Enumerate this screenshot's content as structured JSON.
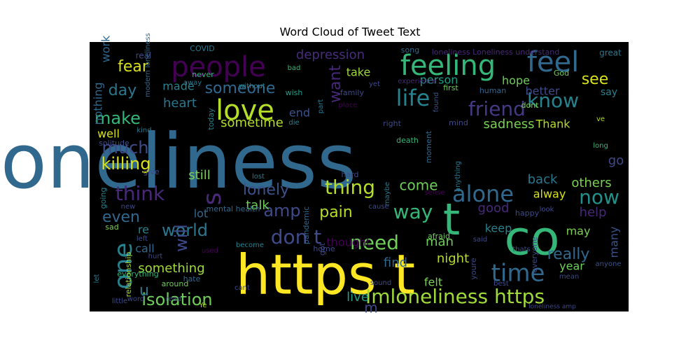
{
  "chart_data": {
    "type": "wordcloud",
    "title": "Word Cloud of Tweet Text",
    "background": "#000000",
    "colormap": "viridis",
    "words": [
      {
        "text": "loneliness",
        "size": 108,
        "color": "#31688e"
      },
      {
        "text": "https t",
        "size": 78,
        "color": "#fde725"
      },
      {
        "text": "co",
        "size": 68,
        "color": "#35b779"
      },
      {
        "text": "t",
        "size": 62,
        "color": "#35b779"
      },
      {
        "text": "feel",
        "size": 40,
        "color": "#31688e"
      },
      {
        "text": "people",
        "size": 40,
        "color": "#440154"
      },
      {
        "text": "feeling",
        "size": 40,
        "color": "#35b779"
      },
      {
        "text": "love",
        "size": 40,
        "color": "#b5de2b"
      },
      {
        "text": "life",
        "size": 32,
        "color": "#26828e"
      },
      {
        "text": "know",
        "size": 28,
        "color": "#26828e"
      },
      {
        "text": "friend",
        "size": 28,
        "color": "#443983"
      },
      {
        "text": "time",
        "size": 34,
        "color": "#31688e"
      },
      {
        "text": "alone",
        "size": 32,
        "color": "#31688e"
      },
      {
        "text": "one",
        "size": 36,
        "color": "#26828e"
      },
      {
        "text": "Imloneliness https",
        "size": 28,
        "color": "#a0da39"
      },
      {
        "text": "don t",
        "size": 28,
        "color": "#3e4a89"
      },
      {
        "text": "need",
        "size": 28,
        "color": "#6ece58"
      },
      {
        "text": "way",
        "size": 28,
        "color": "#35b779"
      },
      {
        "text": "now",
        "size": 28,
        "color": "#21918c"
      },
      {
        "text": "think",
        "size": 28,
        "color": "#482878"
      },
      {
        "text": "thing",
        "size": 28,
        "color": "#b5de2b"
      },
      {
        "text": "s",
        "size": 36,
        "color": "#482878"
      },
      {
        "text": "make",
        "size": 24,
        "color": "#35b779"
      },
      {
        "text": "killing",
        "size": 24,
        "color": "#d8e219"
      },
      {
        "text": "much",
        "size": 24,
        "color": "#3e4a89"
      },
      {
        "text": "world",
        "size": 24,
        "color": "#2a788e"
      },
      {
        "text": "amp",
        "size": 24,
        "color": "#3e4a89"
      },
      {
        "text": "will",
        "size": 24,
        "color": "#3e4a89"
      },
      {
        "text": "pain",
        "size": 22,
        "color": "#b5de2b"
      },
      {
        "text": "isolation",
        "size": 24,
        "color": "#6ece58"
      },
      {
        "text": "even",
        "size": 22,
        "color": "#31688e"
      },
      {
        "text": "want",
        "size": 22,
        "color": "#482878"
      },
      {
        "text": "see",
        "size": 22,
        "color": "#d8e219"
      },
      {
        "text": "fear",
        "size": 22,
        "color": "#d8e219"
      },
      {
        "text": "day",
        "size": 22,
        "color": "#2a788e"
      },
      {
        "text": "someone",
        "size": 22,
        "color": "#31688e"
      },
      {
        "text": "lonely",
        "size": 22,
        "color": "#3b528b"
      },
      {
        "text": "really",
        "size": 22,
        "color": "#31688e"
      },
      {
        "text": "u",
        "size": 22,
        "color": "#2a788e"
      },
      {
        "text": "depression",
        "size": 18,
        "color": "#472d7b"
      },
      {
        "text": "heart",
        "size": 18,
        "color": "#2a788e"
      },
      {
        "text": "made",
        "size": 16,
        "color": "#26828e"
      },
      {
        "text": "sometime",
        "size": 18,
        "color": "#b5de2b"
      },
      {
        "text": "end",
        "size": 16,
        "color": "#3b528b"
      },
      {
        "text": "take",
        "size": 16,
        "color": "#a0da39"
      },
      {
        "text": "person",
        "size": 16,
        "color": "#1f9e89"
      },
      {
        "text": "hope",
        "size": 16,
        "color": "#6ece58"
      },
      {
        "text": "better",
        "size": 16,
        "color": "#3e4a89"
      },
      {
        "text": "say",
        "size": 14,
        "color": "#26828e"
      },
      {
        "text": "sadness",
        "size": 18,
        "color": "#7ad151"
      },
      {
        "text": "Thank",
        "size": 16,
        "color": "#b5de2b"
      },
      {
        "text": "nothing",
        "size": 16,
        "color": "#31688e"
      },
      {
        "text": "well",
        "size": 16,
        "color": "#d8e219"
      },
      {
        "text": "come",
        "size": 20,
        "color": "#6ece58"
      },
      {
        "text": "back",
        "size": 18,
        "color": "#2a788e"
      },
      {
        "text": "go",
        "size": 18,
        "color": "#3e4a89"
      },
      {
        "text": "others",
        "size": 18,
        "color": "#7ad151"
      },
      {
        "text": "alway",
        "size": 16,
        "color": "#d8e219"
      },
      {
        "text": "still",
        "size": 18,
        "color": "#7ad151"
      },
      {
        "text": "lot",
        "size": 16,
        "color": "#31688e"
      },
      {
        "text": "talk",
        "size": 18,
        "color": "#6ece58"
      },
      {
        "text": "good",
        "size": 18,
        "color": "#482878"
      },
      {
        "text": "help",
        "size": 18,
        "color": "#482878"
      },
      {
        "text": "keep",
        "size": 16,
        "color": "#26828e"
      },
      {
        "text": "may",
        "size": 16,
        "color": "#7ad151"
      },
      {
        "text": "many",
        "size": 16,
        "color": "#3b528b"
      },
      {
        "text": "man",
        "size": 18,
        "color": "#6ece58"
      },
      {
        "text": "thought",
        "size": 16,
        "color": "#440154"
      },
      {
        "text": "re",
        "size": 16,
        "color": "#26828e"
      },
      {
        "text": "call",
        "size": 16,
        "color": "#31688e"
      },
      {
        "text": "night",
        "size": 18,
        "color": "#b5de2b"
      },
      {
        "text": "find",
        "size": 18,
        "color": "#31688e"
      },
      {
        "text": "year",
        "size": 16,
        "color": "#6ece58"
      },
      {
        "text": "felt",
        "size": 16,
        "color": "#7ad151"
      },
      {
        "text": "something",
        "size": 18,
        "color": "#a0da39"
      },
      {
        "text": "live",
        "size": 18,
        "color": "#1f9e89"
      },
      {
        "text": "work",
        "size": 16,
        "color": "#31688e"
      },
      {
        "text": "m",
        "size": 20,
        "color": "#3e4a89"
      },
      {
        "text": "loneliness Loneliness understand",
        "size": 11,
        "color": "#482878"
      },
      {
        "text": "great",
        "size": 12,
        "color": "#2a788e"
      },
      {
        "text": "song",
        "size": 11,
        "color": "#31688e"
      },
      {
        "text": "bad",
        "size": 10,
        "color": "#35b779"
      },
      {
        "text": "real",
        "size": 12,
        "color": "#3e4a89"
      },
      {
        "text": "COVID",
        "size": 11,
        "color": "#2a788e"
      },
      {
        "text": "modern loneliness",
        "size": 10,
        "color": "#31688e"
      },
      {
        "text": "never",
        "size": 11,
        "color": "#35b779"
      },
      {
        "text": "away",
        "size": 10,
        "color": "#2a788e"
      },
      {
        "text": "without",
        "size": 10,
        "color": "#26828e"
      },
      {
        "text": "wish",
        "size": 11,
        "color": "#1f9e89"
      },
      {
        "text": "family",
        "size": 11,
        "color": "#3e4a89"
      },
      {
        "text": "place",
        "size": 10,
        "color": "#440154"
      },
      {
        "text": "yet",
        "size": 10,
        "color": "#3e4a89"
      },
      {
        "text": "experience",
        "size": 10,
        "color": "#482878"
      },
      {
        "text": "first",
        "size": 11,
        "color": "#6ece58"
      },
      {
        "text": "human",
        "size": 11,
        "color": "#31688e"
      },
      {
        "text": "God",
        "size": 11,
        "color": "#6ece58"
      },
      {
        "text": "dont",
        "size": 11,
        "color": "#7ad151"
      },
      {
        "text": "ve",
        "size": 10,
        "color": "#b5de2b"
      },
      {
        "text": "today",
        "size": 11,
        "color": "#26828e"
      },
      {
        "text": "die",
        "size": 10,
        "color": "#26828e"
      },
      {
        "text": "right",
        "size": 11,
        "color": "#3e4a89"
      },
      {
        "text": "mind",
        "size": 11,
        "color": "#3e4a89"
      },
      {
        "text": "death",
        "size": 11,
        "color": "#35b779"
      },
      {
        "text": "moment",
        "size": 11,
        "color": "#31688e"
      },
      {
        "text": "long",
        "size": 10,
        "color": "#35b779"
      },
      {
        "text": "part",
        "size": 10,
        "color": "#2a788e"
      },
      {
        "text": "found",
        "size": 10,
        "color": "#3b528b"
      },
      {
        "text": "kind",
        "size": 10,
        "color": "#2a788e"
      },
      {
        "text": "solitude",
        "size": 11,
        "color": "#3e4a89"
      },
      {
        "text": "give",
        "size": 11,
        "color": "#3e4a89"
      },
      {
        "text": "lost",
        "size": 10,
        "color": "#2a788e"
      },
      {
        "text": "anything",
        "size": 10,
        "color": "#2a788e"
      },
      {
        "text": "maybe",
        "size": 10,
        "color": "#2a788e"
      },
      {
        "text": "sense",
        "size": 10,
        "color": "#440154"
      },
      {
        "text": "happy",
        "size": 11,
        "color": "#3e4a89"
      },
      {
        "text": "going",
        "size": 11,
        "color": "#26828e"
      },
      {
        "text": "new",
        "size": 10,
        "color": "#3e4a89"
      },
      {
        "text": "mental health",
        "size": 11,
        "color": "#31688e"
      },
      {
        "text": "cause",
        "size": 10,
        "color": "#3e4a89"
      },
      {
        "text": "look",
        "size": 10,
        "color": "#3e4a89"
      },
      {
        "text": "sad",
        "size": 11,
        "color": "#7ad151"
      },
      {
        "text": "pandemic",
        "size": 11,
        "color": "#31688e"
      },
      {
        "text": "left",
        "size": 10,
        "color": "#3e4a89"
      },
      {
        "text": "become",
        "size": 10,
        "color": "#26828e"
      },
      {
        "text": "afraid",
        "size": 11,
        "color": "#6ece58"
      },
      {
        "text": "said",
        "size": 10,
        "color": "#3e4a89"
      },
      {
        "text": "hurt",
        "size": 10,
        "color": "#3e4a89"
      },
      {
        "text": "used",
        "size": 10,
        "color": "#440154"
      },
      {
        "text": "got",
        "size": 11,
        "color": "#3e4a89"
      },
      {
        "text": "home",
        "size": 11,
        "color": "#3e4a89"
      },
      {
        "text": "thats",
        "size": 10,
        "color": "#3e4a89"
      },
      {
        "text": "everyone",
        "size": 11,
        "color": "#3e4a89"
      },
      {
        "text": "anyone",
        "size": 10,
        "color": "#3b528b"
      },
      {
        "text": "youre",
        "size": 11,
        "color": "#3e4a89"
      },
      {
        "text": "let",
        "size": 10,
        "color": "#2a788e"
      },
      {
        "text": "everything",
        "size": 11,
        "color": "#35b779"
      },
      {
        "text": "read",
        "size": 10,
        "color": "#3e4a89"
      },
      {
        "text": "hate",
        "size": 11,
        "color": "#31688e"
      },
      {
        "text": "around",
        "size": 11,
        "color": "#6ece58"
      },
      {
        "text": "mean",
        "size": 10,
        "color": "#3e4a89"
      },
      {
        "text": "relationship",
        "size": 11,
        "color": "#a0da39"
      },
      {
        "text": "cant",
        "size": 10,
        "color": "#3e4a89"
      },
      {
        "text": "sound",
        "size": 10,
        "color": "#3e4a89"
      },
      {
        "text": "best",
        "size": 10,
        "color": "#3e4a89"
      },
      {
        "text": "little",
        "size": 10,
        "color": "#3e4a89"
      },
      {
        "text": "word",
        "size": 10,
        "color": "#3e4a89"
      },
      {
        "text": "Ye",
        "size": 10,
        "color": "#b5de2b"
      },
      {
        "text": "loneliness amp",
        "size": 9,
        "color": "#3e4a89"
      },
      {
        "text": "hard",
        "size": 11,
        "color": "#3e4a89"
      }
    ]
  }
}
